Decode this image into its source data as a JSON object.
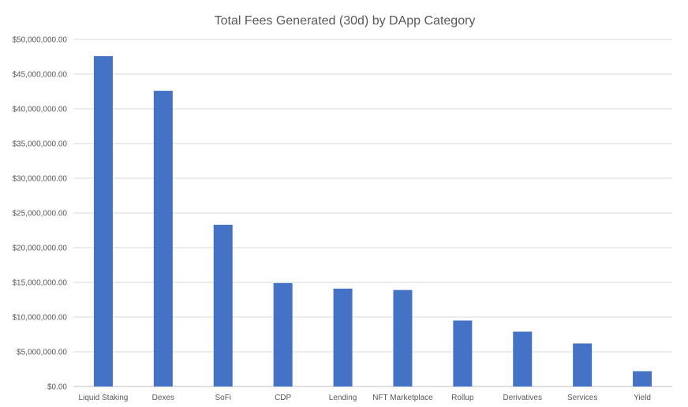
{
  "chart_data": {
    "type": "bar",
    "title": "Total Fees Generated (30d) by DApp Category",
    "xlabel": "",
    "ylabel": "",
    "categories": [
      "Liquid Staking",
      "Dexes",
      "SoFi",
      "CDP",
      "Lending",
      "NFT Marketplace",
      "Rollup",
      "Derivatives",
      "Services",
      "Yield"
    ],
    "values": [
      47600000,
      42600000,
      23300000,
      14900000,
      14100000,
      13900000,
      9500000,
      7900000,
      6200000,
      2200000
    ],
    "ylim": [
      0,
      50000000
    ],
    "y_ticks": [
      0,
      5000000,
      10000000,
      15000000,
      20000000,
      25000000,
      30000000,
      35000000,
      40000000,
      45000000,
      50000000
    ],
    "y_tick_labels": [
      "$0.00",
      "$5,000,000.00",
      "$10,000,000.00",
      "$15,000,000.00",
      "$20,000,000.00",
      "$25,000,000.00",
      "$30,000,000.00",
      "$35,000,000.00",
      "$40,000,000.00",
      "$45,000,000.00",
      "$50,000,000.00"
    ],
    "grid": true,
    "legend": "none",
    "bar_color": "#4472c4"
  }
}
